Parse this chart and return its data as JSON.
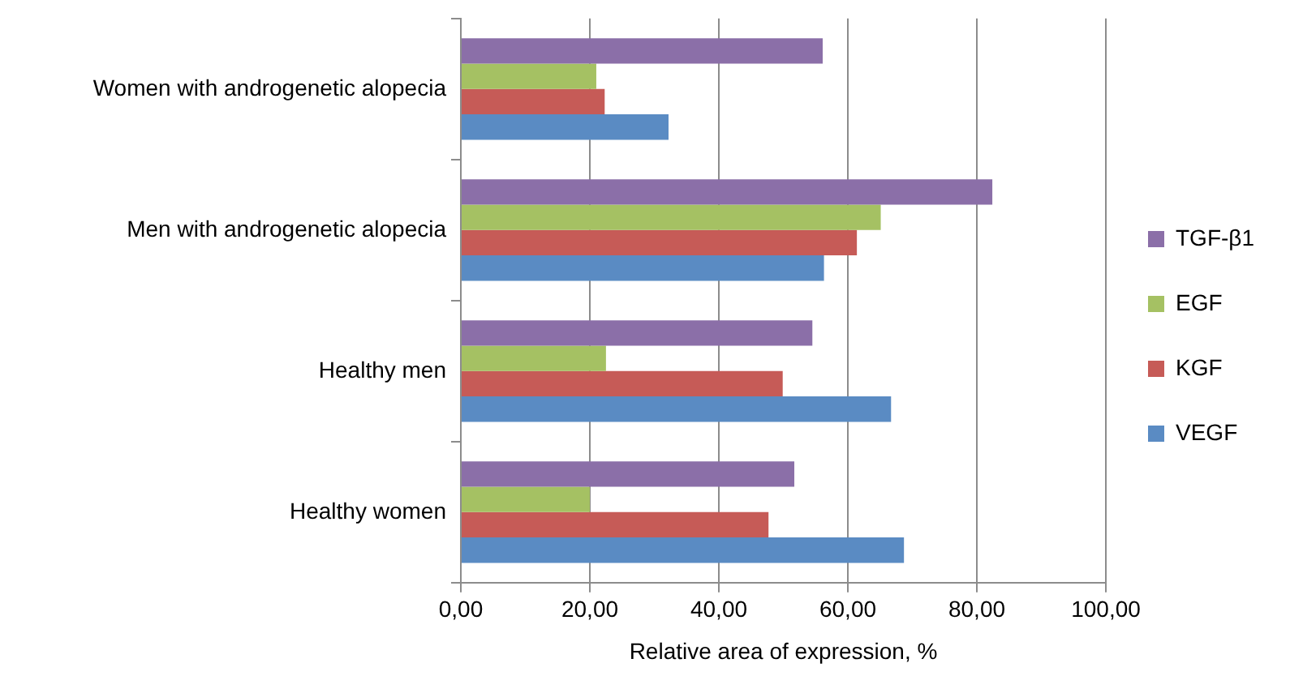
{
  "chart_data": {
    "type": "bar",
    "orientation": "horizontal",
    "xlabel": "Relative area of expression, %",
    "categories": [
      "Women with androgenetic alopecia",
      "Men with androgenetic alopecia",
      "Healthy men",
      "Healthy women"
    ],
    "series": [
      {
        "name": "TGF-β1",
        "color": "#8b6fa8",
        "values": [
          56.1,
          82.4,
          54.5,
          51.7
        ]
      },
      {
        "name": "EGF",
        "color": "#a5c163",
        "values": [
          21.0,
          65.1,
          22.5,
          20.0
        ]
      },
      {
        "name": "KGF",
        "color": "#c65b57",
        "values": [
          22.3,
          61.4,
          49.9,
          47.7
        ]
      },
      {
        "name": "VEGF",
        "color": "#5a8bc3",
        "values": [
          32.2,
          56.3,
          66.7,
          68.7
        ]
      }
    ],
    "xlim": [
      0,
      100
    ],
    "xticks": [
      {
        "value": 0,
        "label": "0,00"
      },
      {
        "value": 20,
        "label": "20,00"
      },
      {
        "value": 40,
        "label": "40,00"
      },
      {
        "value": 60,
        "label": "60,00"
      },
      {
        "value": 80,
        "label": "80,00"
      },
      {
        "value": 100,
        "label": "100,00"
      }
    ],
    "grid": "x",
    "legend": "right"
  }
}
